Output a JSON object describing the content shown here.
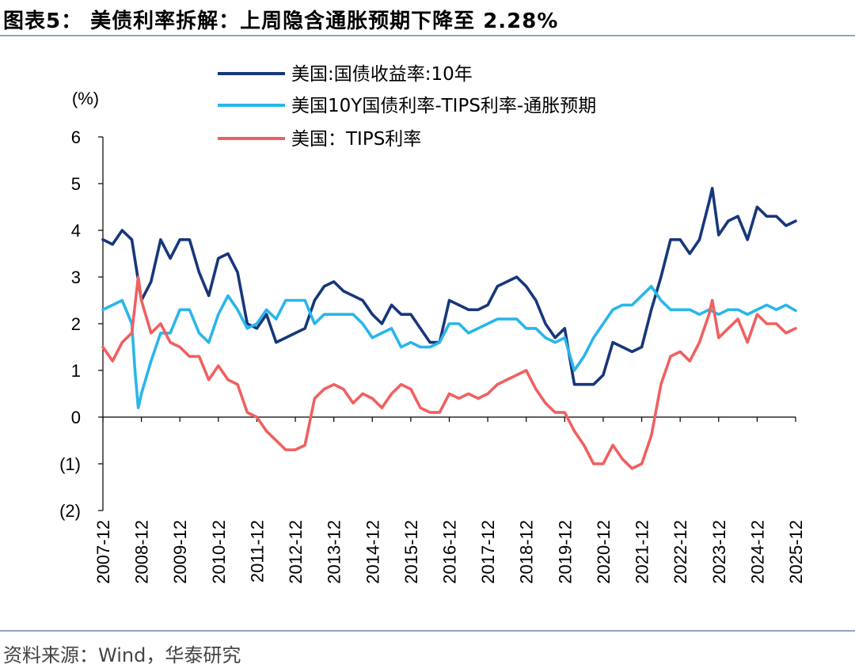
{
  "header": {
    "title": "图表5： 美债利率拆解：上周隐含通胀预期下降至 2.28%"
  },
  "footer": {
    "source": "资料来源：Wind，华泰研究"
  },
  "chart_data": {
    "type": "line",
    "unit_label": "(%)",
    "ylim": [
      -2,
      6
    ],
    "yticks": [
      {
        "v": 6,
        "label": "6"
      },
      {
        "v": 5,
        "label": "5"
      },
      {
        "v": 4,
        "label": "4"
      },
      {
        "v": 3,
        "label": "3"
      },
      {
        "v": 2,
        "label": "2"
      },
      {
        "v": 1,
        "label": "1"
      },
      {
        "v": 0,
        "label": "0"
      },
      {
        "v": -1,
        "label": "(1)"
      },
      {
        "v": -2,
        "label": "(2)"
      }
    ],
    "xticks": [
      "2007-12",
      "2008-12",
      "2009-12",
      "2010-12",
      "2011-12",
      "2012-12",
      "2013-12",
      "2014-12",
      "2015-12",
      "2016-12",
      "2017-12",
      "2018-12",
      "2019-12",
      "2020-12",
      "2021-12",
      "2022-12",
      "2023-12",
      "2024-12",
      "2025-12"
    ],
    "legend_position": "top",
    "series": [
      {
        "name": "美国:国债收益率:10年",
        "color": "#17377a",
        "points": [
          [
            "2007-12",
            3.8
          ],
          [
            "2008-03",
            3.7
          ],
          [
            "2008-06",
            4.0
          ],
          [
            "2008-09",
            3.8
          ],
          [
            "2008-12",
            2.5
          ],
          [
            "2009-03",
            2.9
          ],
          [
            "2009-06",
            3.8
          ],
          [
            "2009-09",
            3.4
          ],
          [
            "2009-12",
            3.8
          ],
          [
            "2010-03",
            3.8
          ],
          [
            "2010-06",
            3.1
          ],
          [
            "2010-09",
            2.6
          ],
          [
            "2010-12",
            3.4
          ],
          [
            "2011-03",
            3.5
          ],
          [
            "2011-06",
            3.1
          ],
          [
            "2011-09",
            2.0
          ],
          [
            "2011-12",
            1.9
          ],
          [
            "2012-03",
            2.2
          ],
          [
            "2012-06",
            1.6
          ],
          [
            "2012-09",
            1.7
          ],
          [
            "2012-12",
            1.8
          ],
          [
            "2013-03",
            1.9
          ],
          [
            "2013-06",
            2.5
          ],
          [
            "2013-09",
            2.8
          ],
          [
            "2013-12",
            2.9
          ],
          [
            "2014-03",
            2.7
          ],
          [
            "2014-06",
            2.6
          ],
          [
            "2014-09",
            2.5
          ],
          [
            "2014-12",
            2.2
          ],
          [
            "2015-03",
            2.0
          ],
          [
            "2015-06",
            2.4
          ],
          [
            "2015-09",
            2.2
          ],
          [
            "2015-12",
            2.2
          ],
          [
            "2016-03",
            1.9
          ],
          [
            "2016-06",
            1.6
          ],
          [
            "2016-09",
            1.6
          ],
          [
            "2016-12",
            2.5
          ],
          [
            "2017-03",
            2.4
          ],
          [
            "2017-06",
            2.3
          ],
          [
            "2017-09",
            2.3
          ],
          [
            "2017-12",
            2.4
          ],
          [
            "2018-03",
            2.8
          ],
          [
            "2018-06",
            2.9
          ],
          [
            "2018-09",
            3.0
          ],
          [
            "2018-12",
            2.8
          ],
          [
            "2019-03",
            2.5
          ],
          [
            "2019-06",
            2.0
          ],
          [
            "2019-09",
            1.7
          ],
          [
            "2019-12",
            1.9
          ],
          [
            "2020-03",
            0.7
          ],
          [
            "2020-06",
            0.7
          ],
          [
            "2020-09",
            0.7
          ],
          [
            "2020-12",
            0.9
          ],
          [
            "2021-03",
            1.6
          ],
          [
            "2021-06",
            1.5
          ],
          [
            "2021-09",
            1.4
          ],
          [
            "2021-12",
            1.5
          ],
          [
            "2022-03",
            2.3
          ],
          [
            "2022-06",
            3.0
          ],
          [
            "2022-09",
            3.8
          ],
          [
            "2022-12",
            3.8
          ],
          [
            "2023-03",
            3.5
          ],
          [
            "2023-06",
            3.8
          ],
          [
            "2023-09",
            4.6
          ],
          [
            "2023-10",
            4.9
          ],
          [
            "2023-12",
            3.9
          ],
          [
            "2024-03",
            4.2
          ],
          [
            "2024-06",
            4.3
          ],
          [
            "2024-09",
            3.8
          ],
          [
            "2024-12",
            4.5
          ],
          [
            "2025-03",
            4.3
          ],
          [
            "2025-06",
            4.3
          ],
          [
            "2025-09",
            4.1
          ],
          [
            "2025-12",
            4.2
          ]
        ]
      },
      {
        "name": "美国10Y国债利率-TIPS利率-通胀预期",
        "color": "#29b6ea",
        "points": [
          [
            "2007-12",
            2.3
          ],
          [
            "2008-03",
            2.4
          ],
          [
            "2008-06",
            2.5
          ],
          [
            "2008-09",
            2.0
          ],
          [
            "2008-10",
            1.0
          ],
          [
            "2008-11",
            0.2
          ],
          [
            "2008-12",
            0.5
          ],
          [
            "2009-03",
            1.2
          ],
          [
            "2009-06",
            1.8
          ],
          [
            "2009-09",
            1.8
          ],
          [
            "2009-12",
            2.3
          ],
          [
            "2010-03",
            2.3
          ],
          [
            "2010-06",
            1.8
          ],
          [
            "2010-09",
            1.6
          ],
          [
            "2010-12",
            2.2
          ],
          [
            "2011-03",
            2.6
          ],
          [
            "2011-06",
            2.3
          ],
          [
            "2011-09",
            1.9
          ],
          [
            "2011-12",
            2.0
          ],
          [
            "2012-03",
            2.3
          ],
          [
            "2012-06",
            2.1
          ],
          [
            "2012-09",
            2.5
          ],
          [
            "2012-12",
            2.5
          ],
          [
            "2013-03",
            2.5
          ],
          [
            "2013-06",
            2.0
          ],
          [
            "2013-09",
            2.2
          ],
          [
            "2013-12",
            2.2
          ],
          [
            "2014-03",
            2.2
          ],
          [
            "2014-06",
            2.2
          ],
          [
            "2014-09",
            2.0
          ],
          [
            "2014-12",
            1.7
          ],
          [
            "2015-03",
            1.8
          ],
          [
            "2015-06",
            1.9
          ],
          [
            "2015-09",
            1.5
          ],
          [
            "2015-12",
            1.6
          ],
          [
            "2016-03",
            1.5
          ],
          [
            "2016-06",
            1.5
          ],
          [
            "2016-09",
            1.6
          ],
          [
            "2016-12",
            2.0
          ],
          [
            "2017-03",
            2.0
          ],
          [
            "2017-06",
            1.8
          ],
          [
            "2017-09",
            1.9
          ],
          [
            "2017-12",
            2.0
          ],
          [
            "2018-03",
            2.1
          ],
          [
            "2018-06",
            2.1
          ],
          [
            "2018-09",
            2.1
          ],
          [
            "2018-12",
            1.9
          ],
          [
            "2019-03",
            1.9
          ],
          [
            "2019-06",
            1.7
          ],
          [
            "2019-09",
            1.6
          ],
          [
            "2019-12",
            1.7
          ],
          [
            "2020-03",
            1.0
          ],
          [
            "2020-06",
            1.3
          ],
          [
            "2020-09",
            1.7
          ],
          [
            "2020-12",
            2.0
          ],
          [
            "2021-03",
            2.3
          ],
          [
            "2021-06",
            2.4
          ],
          [
            "2021-09",
            2.4
          ],
          [
            "2021-12",
            2.6
          ],
          [
            "2022-03",
            2.8
          ],
          [
            "2022-06",
            2.5
          ],
          [
            "2022-09",
            2.3
          ],
          [
            "2022-12",
            2.3
          ],
          [
            "2023-03",
            2.3
          ],
          [
            "2023-06",
            2.2
          ],
          [
            "2023-09",
            2.3
          ],
          [
            "2023-12",
            2.2
          ],
          [
            "2024-03",
            2.3
          ],
          [
            "2024-06",
            2.3
          ],
          [
            "2024-09",
            2.2
          ],
          [
            "2024-12",
            2.3
          ],
          [
            "2025-03",
            2.4
          ],
          [
            "2025-06",
            2.3
          ],
          [
            "2025-09",
            2.4
          ],
          [
            "2025-12",
            2.28
          ]
        ]
      },
      {
        "name": "美国：TIPS利率",
        "color": "#f06060",
        "points": [
          [
            "2007-12",
            1.5
          ],
          [
            "2008-03",
            1.2
          ],
          [
            "2008-06",
            1.6
          ],
          [
            "2008-09",
            1.8
          ],
          [
            "2008-11",
            3.0
          ],
          [
            "2008-12",
            2.5
          ],
          [
            "2009-03",
            1.8
          ],
          [
            "2009-06",
            2.0
          ],
          [
            "2009-09",
            1.6
          ],
          [
            "2009-12",
            1.5
          ],
          [
            "2010-03",
            1.3
          ],
          [
            "2010-06",
            1.3
          ],
          [
            "2010-09",
            0.8
          ],
          [
            "2010-12",
            1.1
          ],
          [
            "2011-03",
            0.8
          ],
          [
            "2011-06",
            0.7
          ],
          [
            "2011-09",
            0.1
          ],
          [
            "2011-12",
            0.0
          ],
          [
            "2012-03",
            -0.3
          ],
          [
            "2012-06",
            -0.5
          ],
          [
            "2012-09",
            -0.7
          ],
          [
            "2012-12",
            -0.7
          ],
          [
            "2013-03",
            -0.6
          ],
          [
            "2013-06",
            0.4
          ],
          [
            "2013-09",
            0.6
          ],
          [
            "2013-12",
            0.7
          ],
          [
            "2014-03",
            0.6
          ],
          [
            "2014-06",
            0.3
          ],
          [
            "2014-09",
            0.5
          ],
          [
            "2014-12",
            0.4
          ],
          [
            "2015-03",
            0.2
          ],
          [
            "2015-06",
            0.5
          ],
          [
            "2015-09",
            0.7
          ],
          [
            "2015-12",
            0.6
          ],
          [
            "2016-03",
            0.2
          ],
          [
            "2016-06",
            0.1
          ],
          [
            "2016-09",
            0.1
          ],
          [
            "2016-12",
            0.5
          ],
          [
            "2017-03",
            0.4
          ],
          [
            "2017-06",
            0.5
          ],
          [
            "2017-09",
            0.4
          ],
          [
            "2017-12",
            0.5
          ],
          [
            "2018-03",
            0.7
          ],
          [
            "2018-06",
            0.8
          ],
          [
            "2018-09",
            0.9
          ],
          [
            "2018-12",
            1.0
          ],
          [
            "2019-03",
            0.6
          ],
          [
            "2019-06",
            0.3
          ],
          [
            "2019-09",
            0.1
          ],
          [
            "2019-12",
            0.1
          ],
          [
            "2020-03",
            -0.3
          ],
          [
            "2020-06",
            -0.6
          ],
          [
            "2020-09",
            -1.0
          ],
          [
            "2020-12",
            -1.0
          ],
          [
            "2021-03",
            -0.6
          ],
          [
            "2021-06",
            -0.9
          ],
          [
            "2021-09",
            -1.1
          ],
          [
            "2021-12",
            -1.0
          ],
          [
            "2022-03",
            -0.4
          ],
          [
            "2022-06",
            0.7
          ],
          [
            "2022-09",
            1.3
          ],
          [
            "2022-12",
            1.4
          ],
          [
            "2023-03",
            1.2
          ],
          [
            "2023-06",
            1.6
          ],
          [
            "2023-09",
            2.2
          ],
          [
            "2023-10",
            2.5
          ],
          [
            "2023-12",
            1.7
          ],
          [
            "2024-03",
            1.9
          ],
          [
            "2024-06",
            2.1
          ],
          [
            "2024-09",
            1.6
          ],
          [
            "2024-12",
            2.2
          ],
          [
            "2025-03",
            2.0
          ],
          [
            "2025-06",
            2.0
          ],
          [
            "2025-09",
            1.8
          ],
          [
            "2025-12",
            1.9
          ]
        ]
      }
    ]
  }
}
